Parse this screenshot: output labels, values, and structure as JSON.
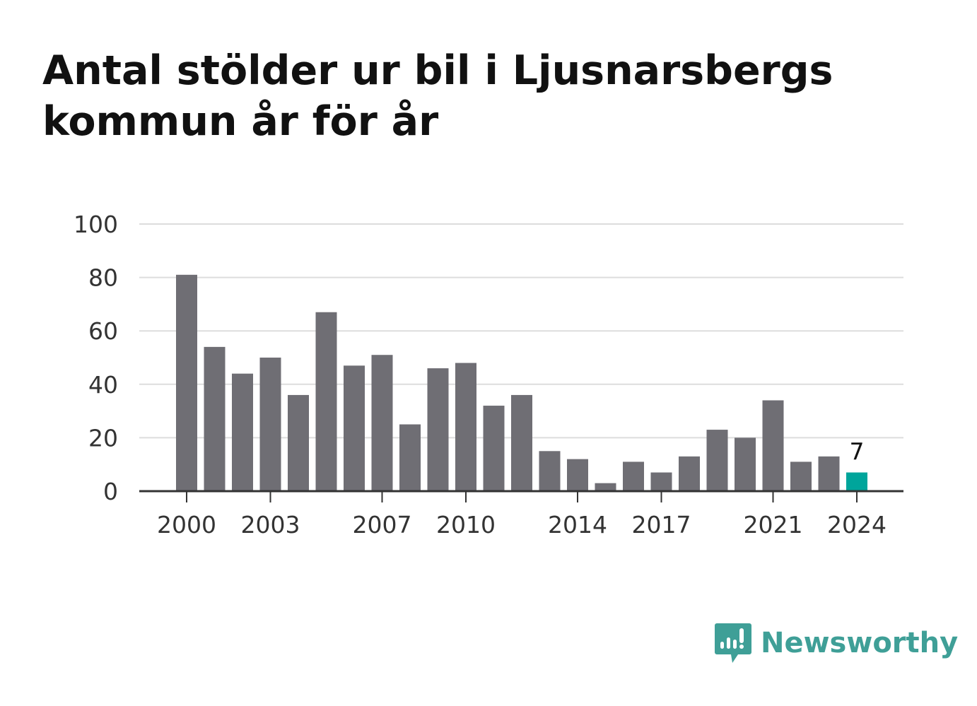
{
  "header": {
    "title": "Antal stölder ur bil i Ljusnarsbergs kommun år för år"
  },
  "brand": {
    "name": "Newsworthy",
    "color": "#3f9f97",
    "icon": "newsworthy-logo-icon"
  },
  "chart_data": {
    "type": "bar",
    "title": "Antal stölder ur bil i Ljusnarsbergs kommun år för år",
    "xlabel": "",
    "ylabel": "",
    "categories": [
      "2000",
      "2001",
      "2002",
      "2003",
      "2004",
      "2005",
      "2006",
      "2007",
      "2008",
      "2009",
      "2010",
      "2011",
      "2012",
      "2013",
      "2014",
      "2015",
      "2016",
      "2017",
      "2018",
      "2019",
      "2020",
      "2021",
      "2022",
      "2023",
      "2024"
    ],
    "values": [
      81,
      54,
      44,
      50,
      36,
      67,
      47,
      51,
      25,
      46,
      48,
      32,
      36,
      15,
      12,
      3,
      11,
      7,
      13,
      23,
      20,
      34,
      11,
      13,
      7
    ],
    "x_tick_labels": [
      "2000",
      "2003",
      "2007",
      "2010",
      "2014",
      "2017",
      "2021",
      "2024"
    ],
    "y_ticks": [
      0,
      20,
      40,
      60,
      80,
      100
    ],
    "ylim": [
      0,
      100
    ],
    "grid": true,
    "highlight": {
      "category": "2024",
      "label": "7",
      "color": "#00a59b"
    },
    "bar_color": "#6f6e74",
    "gridline_color": "#dddddd",
    "axis_color": "#333333"
  }
}
